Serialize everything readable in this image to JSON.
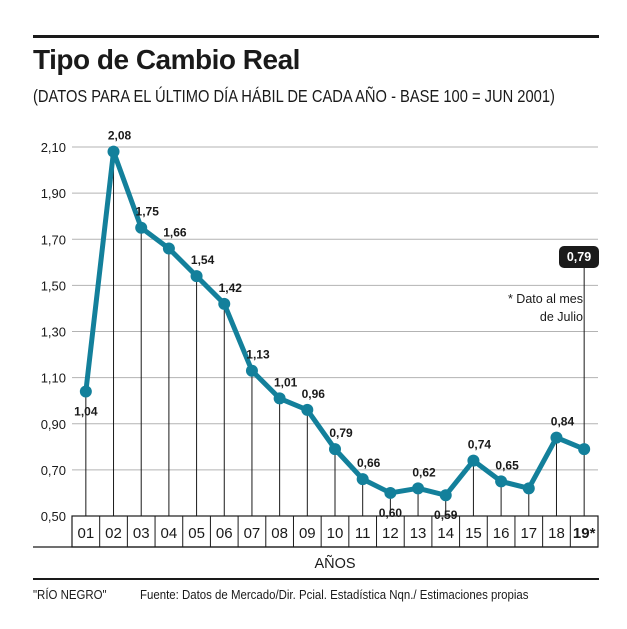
{
  "header": {
    "title": "Tipo de Cambio Real",
    "subtitle": "(DATOS PARA EL ÚLTIMO DÍA HÁBIL DE CADA AÑO - BASE 100 = JUN 2001)"
  },
  "footer": {
    "credit": "\"RÍO NEGRO\"",
    "source": "Fuente: Datos de Mercado/Dir. Pcial. Estadística Nqn./ Estimaciones propias"
  },
  "note": {
    "line1": "* Dato al mes",
    "line2": "de Julio"
  },
  "callout": {
    "label": "0,79"
  },
  "colors": {
    "series": "#13809b",
    "grid": "#b3b3b3",
    "text": "#1a1a1a"
  },
  "chart_data": {
    "type": "line",
    "title": "Tipo de Cambio Real",
    "subtitle": "(DATOS PARA EL ÚLTIMO DÍA HÁBIL DE CADA AÑO - BASE 100 = JUN 2001)",
    "xlabel": "AÑOS",
    "ylabel": "",
    "ylim": [
      0.5,
      2.1
    ],
    "yticks": [
      0.5,
      0.7,
      0.9,
      1.1,
      1.3,
      1.5,
      1.7,
      1.9,
      2.1
    ],
    "ytick_labels": [
      "0,50",
      "0,70",
      "0,90",
      "1,10",
      "1,30",
      "1,50",
      "1,70",
      "1,90",
      "2,10"
    ],
    "grid": true,
    "categories": [
      "01",
      "02",
      "03",
      "04",
      "05",
      "06",
      "07",
      "08",
      "09",
      "10",
      "11",
      "12",
      "13",
      "14",
      "15",
      "16",
      "17",
      "18",
      "19*"
    ],
    "series": [
      {
        "name": "Tipo de Cambio Real",
        "values": [
          1.04,
          2.08,
          1.75,
          1.66,
          1.54,
          1.42,
          1.13,
          1.01,
          0.96,
          0.79,
          0.66,
          0.6,
          0.62,
          0.59,
          0.74,
          0.65,
          0.62,
          0.84,
          0.79
        ],
        "labels": [
          "1,04",
          "2,08",
          "1,75",
          "1,66",
          "1,54",
          "1,42",
          "1,13",
          "1,01",
          "0,96",
          "0,79",
          "0,66",
          "0,60",
          "0,62",
          "0,59",
          "0,74",
          "0,65",
          "",
          "0,84",
          ""
        ]
      }
    ],
    "annotations": [
      {
        "category": "19*",
        "text": "0,79",
        "style": "callout"
      },
      {
        "text": "* Dato al mes de Julio"
      }
    ]
  }
}
